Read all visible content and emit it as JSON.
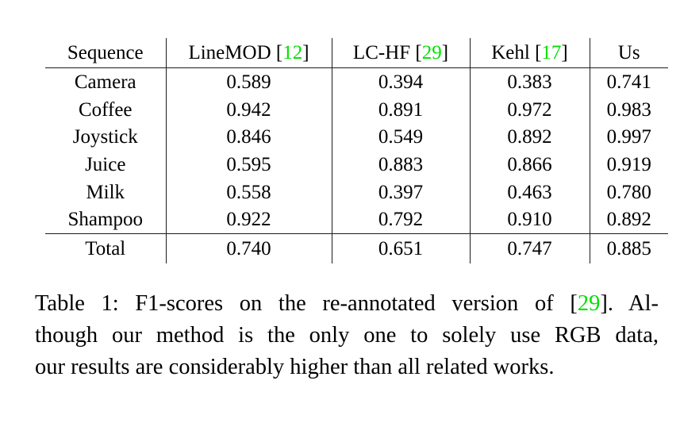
{
  "colors": {
    "citation_green": "#00e000",
    "text": "#000000",
    "rule": "#1c1c1c",
    "background": "#ffffff"
  },
  "table": {
    "cite_bracket_open": " [",
    "cite_bracket_close": "]",
    "header": {
      "sequence_label": "Sequence",
      "methods": [
        {
          "name": "LineMOD",
          "citation": "12"
        },
        {
          "name": "LC-HF",
          "citation": "29"
        },
        {
          "name": "Kehl",
          "citation": "17"
        },
        {
          "name": "Us",
          "citation": null
        }
      ]
    },
    "rows": [
      {
        "sequence": "Camera",
        "values": [
          "0.589",
          "0.394",
          "0.383",
          "0.741"
        ],
        "bold_index": 3
      },
      {
        "sequence": "Coffee",
        "values": [
          "0.942",
          "0.891",
          "0.972",
          "0.983"
        ],
        "bold_index": 3
      },
      {
        "sequence": "Joystick",
        "values": [
          "0.846",
          "0.549",
          "0.892",
          "0.997"
        ],
        "bold_index": 3
      },
      {
        "sequence": "Juice",
        "values": [
          "0.595",
          "0.883",
          "0.866",
          "0.919"
        ],
        "bold_index": 3
      },
      {
        "sequence": "Milk",
        "values": [
          "0.558",
          "0.397",
          "0.463",
          "0.780"
        ],
        "bold_index": 3
      },
      {
        "sequence": "Shampoo",
        "values": [
          "0.922",
          "0.792",
          "0.910",
          "0.892"
        ],
        "bold_index": 0
      }
    ],
    "total": {
      "sequence": "Total",
      "values": [
        "0.740",
        "0.651",
        "0.747",
        "0.885"
      ],
      "bold_index": 3
    }
  },
  "caption": {
    "lines": [
      {
        "prefix": "Table 1: F1-scores on the re-annotated version of ",
        "bracket_open": "[",
        "citation": "29",
        "bracket_close": "]",
        "suffix": ". Al-"
      },
      {
        "text": "though our method is the only one to solely use RGB data,"
      },
      {
        "text": "our results are considerably higher than all related works."
      }
    ]
  }
}
